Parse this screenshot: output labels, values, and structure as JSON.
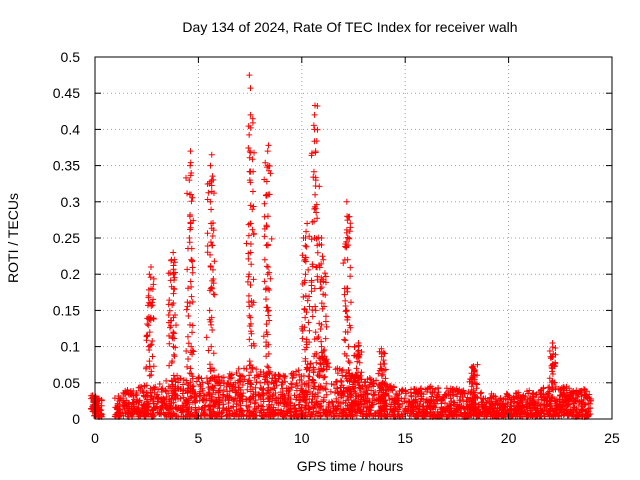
{
  "chart_data": {
    "type": "scatter",
    "title": "Day 134 of 2024, Rate Of TEC Index for receiver walh",
    "xlabel": "GPS time / hours",
    "ylabel": "ROTI / TECUs",
    "xlim": [
      0,
      25
    ],
    "ylim": [
      0,
      0.5
    ],
    "x_ticks": [
      "0",
      "5",
      "10",
      "15",
      "20",
      "25"
    ],
    "y_ticks": [
      "0",
      "0.05",
      "0.1",
      "0.15",
      "0.2",
      "0.25",
      "0.3",
      "0.35",
      "0.4",
      "0.45",
      "0.5"
    ],
    "grid": true,
    "marker": "+",
    "color": "#ff0000",
    "peaks": [
      {
        "x": 0.0,
        "values": [
          0.005,
          0.01,
          0.015,
          0.02,
          0.025,
          0.028
        ]
      },
      {
        "x": 2.65,
        "values": [
          0.08,
          0.1,
          0.12,
          0.14,
          0.16,
          0.18,
          0.2,
          0.21
        ]
      },
      {
        "x": 3.75,
        "values": [
          0.06,
          0.08,
          0.1,
          0.12,
          0.14,
          0.16,
          0.18,
          0.2,
          0.22,
          0.23
        ]
      },
      {
        "x": 4.6,
        "values": [
          0.07,
          0.1,
          0.13,
          0.16,
          0.19,
          0.22,
          0.25,
          0.28,
          0.31,
          0.33,
          0.35,
          0.37
        ]
      },
      {
        "x": 5.6,
        "values": [
          0.07,
          0.1,
          0.13,
          0.15,
          0.18,
          0.21,
          0.24,
          0.27,
          0.3,
          0.33,
          0.35,
          0.365
        ]
      },
      {
        "x": 7.5,
        "values": [
          0.08,
          0.11,
          0.14,
          0.17,
          0.2,
          0.23,
          0.27,
          0.33,
          0.37,
          0.42,
          0.457,
          0.475
        ]
      },
      {
        "x": 8.35,
        "values": [
          0.09,
          0.12,
          0.15,
          0.18,
          0.21,
          0.24,
          0.28,
          0.31,
          0.35,
          0.37,
          0.378
        ]
      },
      {
        "x": 10.2,
        "values": [
          0.08,
          0.11,
          0.14,
          0.17,
          0.2,
          0.22,
          0.25,
          0.27
        ]
      },
      {
        "x": 10.65,
        "values": [
          0.09,
          0.12,
          0.15,
          0.18,
          0.21,
          0.25,
          0.29,
          0.33,
          0.37,
          0.4,
          0.42,
          0.433
        ]
      },
      {
        "x": 11.0,
        "values": [
          0.07,
          0.1,
          0.13,
          0.16,
          0.19,
          0.22,
          0.25
        ]
      },
      {
        "x": 12.2,
        "values": [
          0.06,
          0.08,
          0.1,
          0.12,
          0.14,
          0.18,
          0.22,
          0.25,
          0.28,
          0.3
        ]
      },
      {
        "x": 12.7,
        "values": [
          0.05,
          0.07,
          0.09,
          0.105
        ]
      },
      {
        "x": 13.9,
        "values": [
          0.05,
          0.07,
          0.09,
          0.097
        ]
      },
      {
        "x": 18.3,
        "values": [
          0.04,
          0.05,
          0.06,
          0.073
        ]
      },
      {
        "x": 22.1,
        "values": [
          0.05,
          0.07,
          0.09,
          0.105
        ]
      }
    ],
    "baseline_envelope": [
      {
        "x": 0.0,
        "max": 0.028
      },
      {
        "x": 0.3,
        "max": 0.03
      },
      {
        "x": 1.0,
        "max": 0.035
      },
      {
        "x": 2.0,
        "max": 0.045
      },
      {
        "x": 3.0,
        "max": 0.05
      },
      {
        "x": 4.0,
        "max": 0.06
      },
      {
        "x": 5.0,
        "max": 0.06
      },
      {
        "x": 6.0,
        "max": 0.06
      },
      {
        "x": 7.0,
        "max": 0.07
      },
      {
        "x": 8.0,
        "max": 0.075
      },
      {
        "x": 9.0,
        "max": 0.06
      },
      {
        "x": 10.0,
        "max": 0.07
      },
      {
        "x": 11.0,
        "max": 0.09
      },
      {
        "x": 12.0,
        "max": 0.07
      },
      {
        "x": 13.0,
        "max": 0.06
      },
      {
        "x": 14.0,
        "max": 0.05
      },
      {
        "x": 15.0,
        "max": 0.04
      },
      {
        "x": 16.0,
        "max": 0.045
      },
      {
        "x": 17.0,
        "max": 0.045
      },
      {
        "x": 18.0,
        "max": 0.04
      },
      {
        "x": 19.0,
        "max": 0.035
      },
      {
        "x": 20.0,
        "max": 0.035
      },
      {
        "x": 21.0,
        "max": 0.04
      },
      {
        "x": 22.0,
        "max": 0.045
      },
      {
        "x": 23.0,
        "max": 0.045
      },
      {
        "x": 24.0,
        "max": 0.04
      }
    ],
    "gaps": [
      [
        0.35,
        0.95
      ]
    ],
    "x_data_range": [
      0,
      24
    ]
  }
}
